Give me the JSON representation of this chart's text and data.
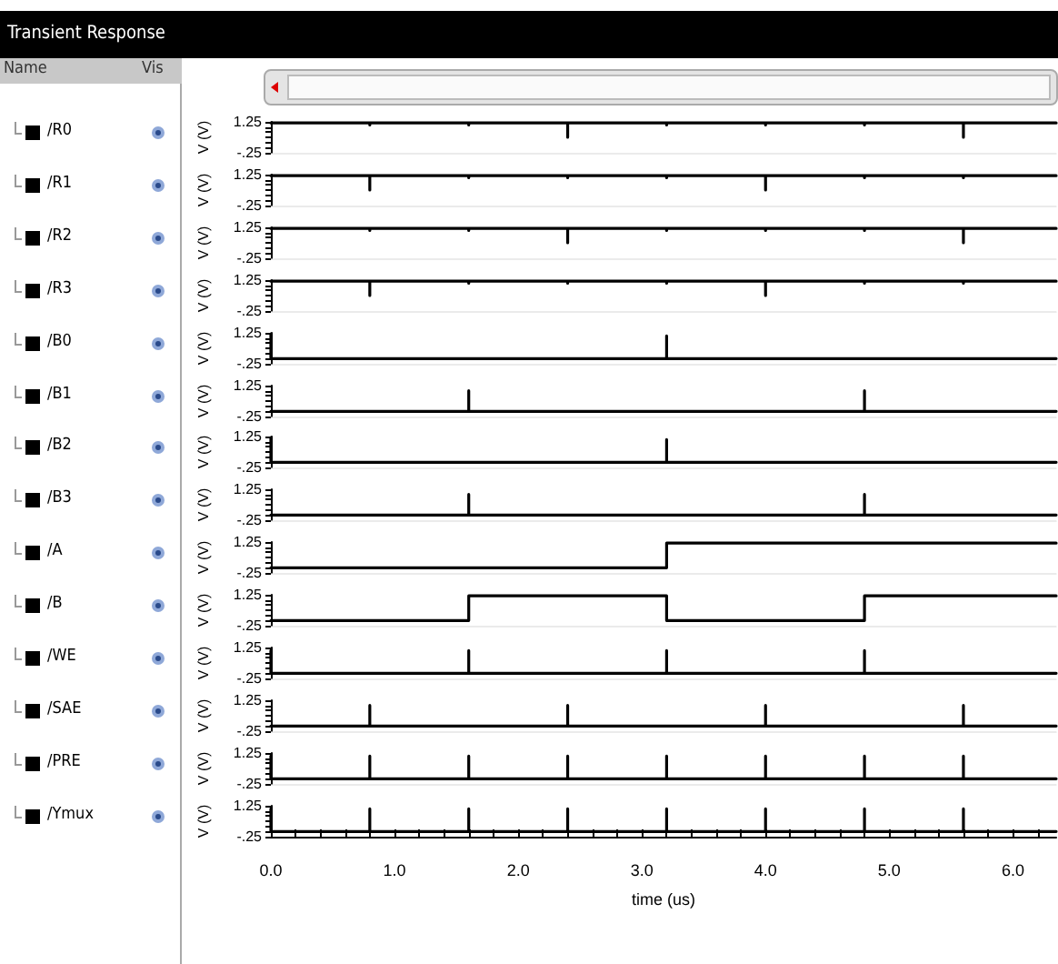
{
  "chart_data": [
    {
      "type": "line",
      "title": "Transient Response",
      "annotations": [
        "Name",
        "Vis"
      ],
      "ylabel": "V (V)",
      "legend": "left",
      "tick_labels": "y",
      "ylim": [
        -0.25,
        1.25
      ],
      "yticks": [
        {
          "value": -0.25,
          "label": "-.25"
        },
        {
          "value": 0,
          "label": null
        },
        {
          "value": 0.25,
          "label": null
        },
        {
          "value": 0.5,
          "label": null
        },
        {
          "value": 0.75,
          "label": null
        },
        {
          "value": 1,
          "label": null
        },
        {
          "value": 1.25,
          "label": "1.25"
        }
      ],
      "xlim": [
        0,
        6.35
      ],
      "series": [
        {
          "name": "/R0",
          "color": "#000000",
          "x": [
            0,
            0.8,
            0.8,
            0.8,
            1.6,
            1.6,
            1.6,
            2.4,
            2.4,
            2.4,
            3.2,
            3.2,
            3.2,
            4.0,
            4.0,
            4.0,
            4.8,
            4.8,
            4.8,
            5.6,
            5.6,
            5.6,
            6.35
          ],
          "values": [
            1.2,
            1.2,
            1.1,
            1.2,
            1.2,
            1.1,
            1.2,
            1.2,
            0.5,
            1.2,
            1.2,
            1.1,
            1.2,
            1.2,
            1.1,
            1.2,
            1.2,
            1.1,
            1.2,
            1.2,
            0.5,
            1.2,
            1.2
          ]
        }
      ]
    },
    {
      "type": "line",
      "ylabel": "V (V)",
      "legend": "left",
      "tick_labels": "y",
      "ylim": [
        -0.25,
        1.25
      ],
      "yticks": [
        {
          "value": -0.25,
          "label": "-.25"
        },
        {
          "value": 0,
          "label": null
        },
        {
          "value": 0.25,
          "label": null
        },
        {
          "value": 0.5,
          "label": null
        },
        {
          "value": 0.75,
          "label": null
        },
        {
          "value": 1,
          "label": null
        },
        {
          "value": 1.25,
          "label": "1.25"
        }
      ],
      "xlim": [
        0,
        6.35
      ],
      "series": [
        {
          "name": "/R1",
          "color": "#000000",
          "x": [
            0,
            0.8,
            0.8,
            0.8,
            1.6,
            1.6,
            1.6,
            2.4,
            2.4,
            2.4,
            3.2,
            3.2,
            3.2,
            4.0,
            4.0,
            4.0,
            4.8,
            4.8,
            4.8,
            5.6,
            5.6,
            5.6,
            6.35
          ],
          "values": [
            1.2,
            1.2,
            0.5,
            1.2,
            1.2,
            1.1,
            1.2,
            1.2,
            1.1,
            1.2,
            1.2,
            1.1,
            1.2,
            1.2,
            0.5,
            1.2,
            1.2,
            1.1,
            1.2,
            1.2,
            1.1,
            1.2,
            1.2
          ]
        }
      ]
    },
    {
      "type": "line",
      "ylabel": "V (V)",
      "legend": "left",
      "tick_labels": "y",
      "ylim": [
        -0.25,
        1.25
      ],
      "yticks": [
        {
          "value": -0.25,
          "label": "-.25"
        },
        {
          "value": 0,
          "label": null
        },
        {
          "value": 0.25,
          "label": null
        },
        {
          "value": 0.5,
          "label": null
        },
        {
          "value": 0.75,
          "label": null
        },
        {
          "value": 1,
          "label": null
        },
        {
          "value": 1.25,
          "label": "1.25"
        }
      ],
      "xlim": [
        0,
        6.35
      ],
      "series": [
        {
          "name": "/R2",
          "color": "#000000",
          "x": [
            0,
            0.8,
            0.8,
            0.8,
            1.6,
            1.6,
            1.6,
            2.4,
            2.4,
            2.4,
            3.2,
            3.2,
            3.2,
            4.0,
            4.0,
            4.0,
            4.8,
            4.8,
            4.8,
            5.6,
            5.6,
            5.6,
            6.35
          ],
          "values": [
            1.2,
            1.2,
            1.1,
            1.2,
            1.2,
            1.1,
            1.2,
            1.2,
            0.5,
            1.2,
            1.2,
            1.1,
            1.2,
            1.2,
            1.1,
            1.2,
            1.2,
            1.1,
            1.2,
            1.2,
            0.5,
            1.2,
            1.2
          ]
        }
      ]
    },
    {
      "type": "line",
      "ylabel": "V (V)",
      "legend": "left",
      "tick_labels": "y",
      "ylim": [
        -0.25,
        1.25
      ],
      "yticks": [
        {
          "value": -0.25,
          "label": "-.25"
        },
        {
          "value": 0,
          "label": null
        },
        {
          "value": 0.25,
          "label": null
        },
        {
          "value": 0.5,
          "label": null
        },
        {
          "value": 0.75,
          "label": null
        },
        {
          "value": 1,
          "label": null
        },
        {
          "value": 1.25,
          "label": "1.25"
        }
      ],
      "xlim": [
        0,
        6.35
      ],
      "series": [
        {
          "name": "/R3",
          "color": "#000000",
          "x": [
            0,
            0.8,
            0.8,
            0.8,
            1.6,
            1.6,
            1.6,
            2.4,
            2.4,
            2.4,
            3.2,
            3.2,
            3.2,
            4.0,
            4.0,
            4.0,
            4.8,
            4.8,
            4.8,
            5.6,
            5.6,
            5.6,
            6.35
          ],
          "values": [
            1.2,
            1.2,
            0.5,
            1.2,
            1.2,
            1.1,
            1.2,
            1.2,
            1.1,
            1.2,
            1.2,
            1.1,
            1.2,
            1.2,
            0.5,
            1.2,
            1.2,
            1.1,
            1.2,
            1.2,
            1.1,
            1.2,
            1.2
          ]
        }
      ]
    },
    {
      "type": "line",
      "ylabel": "V (V)",
      "legend": "left",
      "tick_labels": "y",
      "ylim": [
        -0.25,
        1.25
      ],
      "yticks": [
        {
          "value": -0.25,
          "label": "-.25"
        },
        {
          "value": 0,
          "label": null
        },
        {
          "value": 0.25,
          "label": null
        },
        {
          "value": 0.5,
          "label": null
        },
        {
          "value": 0.75,
          "label": null
        },
        {
          "value": 1,
          "label": null
        },
        {
          "value": 1.25,
          "label": "1.25"
        }
      ],
      "xlim": [
        0,
        6.35
      ],
      "series": [
        {
          "name": "/B0",
          "color": "#000000",
          "x": [
            0,
            0,
            3.2,
            3.2,
            3.2,
            6.35
          ],
          "values": [
            1.2,
            0,
            0,
            1.1,
            0,
            0
          ]
        }
      ]
    },
    {
      "type": "line",
      "ylabel": "V (V)",
      "legend": "left",
      "tick_labels": "y",
      "ylim": [
        -0.25,
        1.25
      ],
      "yticks": [
        {
          "value": -0.25,
          "label": "-.25"
        },
        {
          "value": 0,
          "label": null
        },
        {
          "value": 0.25,
          "label": null
        },
        {
          "value": 0.5,
          "label": null
        },
        {
          "value": 0.75,
          "label": null
        },
        {
          "value": 1,
          "label": null
        },
        {
          "value": 1.25,
          "label": "1.25"
        }
      ],
      "xlim": [
        0,
        6.35
      ],
      "series": [
        {
          "name": "/B1",
          "color": "#000000",
          "x": [
            0,
            1.6,
            1.6,
            1.6,
            4.8,
            4.8,
            4.8,
            6.35
          ],
          "values": [
            0,
            0,
            1.0,
            0,
            0,
            1.0,
            0,
            0
          ]
        }
      ]
    },
    {
      "type": "line",
      "ylabel": "V (V)",
      "legend": "left",
      "tick_labels": "y",
      "ylim": [
        -0.25,
        1.25
      ],
      "yticks": [
        {
          "value": -0.25,
          "label": "-.25"
        },
        {
          "value": 0,
          "label": null
        },
        {
          "value": 0.25,
          "label": null
        },
        {
          "value": 0.5,
          "label": null
        },
        {
          "value": 0.75,
          "label": null
        },
        {
          "value": 1,
          "label": null
        },
        {
          "value": 1.25,
          "label": "1.25"
        }
      ],
      "xlim": [
        0,
        6.35
      ],
      "series": [
        {
          "name": "/B2",
          "color": "#000000",
          "x": [
            0,
            0,
            3.2,
            3.2,
            3.2,
            6.35
          ],
          "values": [
            1.2,
            0,
            0,
            1.1,
            0,
            0
          ]
        }
      ]
    },
    {
      "type": "line",
      "ylabel": "V (V)",
      "legend": "left",
      "tick_labels": "y",
      "ylim": [
        -0.25,
        1.25
      ],
      "yticks": [
        {
          "value": -0.25,
          "label": "-.25"
        },
        {
          "value": 0,
          "label": null
        },
        {
          "value": 0.25,
          "label": null
        },
        {
          "value": 0.5,
          "label": null
        },
        {
          "value": 0.75,
          "label": null
        },
        {
          "value": 1,
          "label": null
        },
        {
          "value": 1.25,
          "label": "1.25"
        }
      ],
      "xlim": [
        0,
        6.35
      ],
      "series": [
        {
          "name": "/B3",
          "color": "#000000",
          "x": [
            0,
            1.6,
            1.6,
            1.6,
            4.8,
            4.8,
            4.8,
            6.35
          ],
          "values": [
            0,
            0,
            1.0,
            0,
            0,
            1.0,
            0,
            0
          ]
        }
      ]
    },
    {
      "type": "step",
      "ylabel": "V (V)",
      "legend": "left",
      "tick_labels": "y",
      "ylim": [
        -0.25,
        1.25
      ],
      "yticks": [
        {
          "value": -0.25,
          "label": "-.25"
        },
        {
          "value": 0,
          "label": null
        },
        {
          "value": 0.25,
          "label": null
        },
        {
          "value": 0.5,
          "label": null
        },
        {
          "value": 0.75,
          "label": null
        },
        {
          "value": 1,
          "label": null
        },
        {
          "value": 1.25,
          "label": "1.25"
        }
      ],
      "xlim": [
        0,
        6.35
      ],
      "series": [
        {
          "name": "/A",
          "color": "#000000",
          "x": [
            0,
            3.2,
            6.35
          ],
          "values": [
            0,
            1.2,
            1.2
          ]
        }
      ]
    },
    {
      "type": "step",
      "ylabel": "V (V)",
      "legend": "left",
      "tick_labels": "y",
      "ylim": [
        -0.25,
        1.25
      ],
      "yticks": [
        {
          "value": -0.25,
          "label": "-.25"
        },
        {
          "value": 0,
          "label": null
        },
        {
          "value": 0.25,
          "label": null
        },
        {
          "value": 0.5,
          "label": null
        },
        {
          "value": 0.75,
          "label": null
        },
        {
          "value": 1,
          "label": null
        },
        {
          "value": 1.25,
          "label": "1.25"
        }
      ],
      "xlim": [
        0,
        6.35
      ],
      "series": [
        {
          "name": "/B",
          "color": "#000000",
          "x": [
            0,
            1.6,
            3.2,
            4.8,
            6.35
          ],
          "values": [
            0,
            1.2,
            0,
            1.2,
            1.2
          ]
        }
      ]
    },
    {
      "type": "line",
      "ylabel": "V (V)",
      "legend": "left",
      "tick_labels": "y",
      "ylim": [
        -0.25,
        1.25
      ],
      "yticks": [
        {
          "value": -0.25,
          "label": "-.25"
        },
        {
          "value": 0,
          "label": null
        },
        {
          "value": 0.25,
          "label": null
        },
        {
          "value": 0.5,
          "label": null
        },
        {
          "value": 0.75,
          "label": null
        },
        {
          "value": 1,
          "label": null
        },
        {
          "value": 1.25,
          "label": "1.25"
        }
      ],
      "xlim": [
        0,
        6.35
      ],
      "series": [
        {
          "name": "/WE",
          "color": "#000000",
          "x": [
            0,
            0,
            1.6,
            1.6,
            1.6,
            3.2,
            3.2,
            3.2,
            4.8,
            4.8,
            4.8,
            6.35
          ],
          "values": [
            1.1,
            0,
            0,
            1.1,
            0,
            0,
            1.1,
            0,
            0,
            1.1,
            0,
            0
          ]
        }
      ]
    },
    {
      "type": "line",
      "ylabel": "V (V)",
      "legend": "left",
      "tick_labels": "y",
      "ylim": [
        -0.25,
        1.25
      ],
      "yticks": [
        {
          "value": -0.25,
          "label": "-.25"
        },
        {
          "value": 0,
          "label": null
        },
        {
          "value": 0.25,
          "label": null
        },
        {
          "value": 0.5,
          "label": null
        },
        {
          "value": 0.75,
          "label": null
        },
        {
          "value": 1,
          "label": null
        },
        {
          "value": 1.25,
          "label": "1.25"
        }
      ],
      "xlim": [
        0,
        6.35
      ],
      "series": [
        {
          "name": "/SAE",
          "color": "#000000",
          "x": [
            0,
            0.8,
            0.8,
            0.8,
            2.4,
            2.4,
            2.4,
            4.0,
            4.0,
            4.0,
            5.6,
            5.6,
            5.6,
            6.35
          ],
          "values": [
            0,
            0,
            1.0,
            0,
            0,
            1.0,
            0,
            0,
            1.0,
            0,
            0,
            1.0,
            0,
            0
          ]
        }
      ]
    },
    {
      "type": "line",
      "ylabel": "V (V)",
      "legend": "left",
      "tick_labels": "y",
      "ylim": [
        -0.25,
        1.25
      ],
      "yticks": [
        {
          "value": -0.25,
          "label": "-.25"
        },
        {
          "value": 0,
          "label": null
        },
        {
          "value": 0.25,
          "label": null
        },
        {
          "value": 0.5,
          "label": null
        },
        {
          "value": 0.75,
          "label": null
        },
        {
          "value": 1,
          "label": null
        },
        {
          "value": 1.25,
          "label": "1.25"
        }
      ],
      "xlim": [
        0,
        6.35
      ],
      "series": [
        {
          "name": "/PRE",
          "color": "#000000",
          "x": [
            0,
            0,
            0.8,
            0.8,
            0.8,
            1.6,
            1.6,
            1.6,
            2.4,
            2.4,
            2.4,
            3.2,
            3.2,
            3.2,
            4.0,
            4.0,
            4.0,
            4.8,
            4.8,
            4.8,
            5.6,
            5.6,
            5.6,
            6.35
          ],
          "values": [
            1.1,
            0,
            0,
            1.1,
            0,
            0,
            1.1,
            0,
            0,
            1.1,
            0,
            0,
            1.1,
            0,
            0,
            1.1,
            0,
            0,
            1.1,
            0,
            0,
            1.1,
            0,
            0
          ]
        }
      ]
    },
    {
      "type": "line",
      "ylabel": "V (V)",
      "xlabel": "time (us)",
      "legend": "left",
      "xlim": [
        0,
        6.35
      ],
      "ylim": [
        -0.25,
        1.25
      ],
      "yticks": [
        {
          "value": -0.25,
          "label": "-.25"
        },
        {
          "value": 0,
          "label": null
        },
        {
          "value": 0.25,
          "label": null
        },
        {
          "value": 0.5,
          "label": null
        },
        {
          "value": 0.75,
          "label": null
        },
        {
          "value": 1,
          "label": null
        },
        {
          "value": 1.25,
          "label": "1.25"
        }
      ],
      "xticks": [
        {
          "value": 0,
          "label": "0.0"
        },
        {
          "value": 0.2,
          "label": null
        },
        {
          "value": 0.4,
          "label": null
        },
        {
          "value": 0.6,
          "label": null
        },
        {
          "value": 0.8,
          "label": null
        },
        {
          "value": 1,
          "label": "1.0"
        },
        {
          "value": 1.2,
          "label": null
        },
        {
          "value": 1.4,
          "label": null
        },
        {
          "value": 1.6,
          "label": null
        },
        {
          "value": 1.8,
          "label": null
        },
        {
          "value": 2,
          "label": "2.0"
        },
        {
          "value": 2.2,
          "label": null
        },
        {
          "value": 2.4,
          "label": null
        },
        {
          "value": 2.6,
          "label": null
        },
        {
          "value": 2.8,
          "label": null
        },
        {
          "value": 3,
          "label": "3.0"
        },
        {
          "value": 3.2,
          "label": null
        },
        {
          "value": 3.4,
          "label": null
        },
        {
          "value": 3.6,
          "label": null
        },
        {
          "value": 3.8,
          "label": null
        },
        {
          "value": 4,
          "label": "4.0"
        },
        {
          "value": 4.2,
          "label": null
        },
        {
          "value": 4.4,
          "label": null
        },
        {
          "value": 4.6,
          "label": null
        },
        {
          "value": 4.8,
          "label": null
        },
        {
          "value": 5,
          "label": "5.0"
        },
        {
          "value": 5.2,
          "label": null
        },
        {
          "value": 5.4,
          "label": null
        },
        {
          "value": 5.6,
          "label": null
        },
        {
          "value": 5.8,
          "label": null
        },
        {
          "value": 6,
          "label": "6.0"
        },
        {
          "value": 6.2,
          "label": null
        }
      ],
      "series": [
        {
          "name": "/Ymux",
          "color": "#000000",
          "x": [
            0,
            0,
            0.8,
            0.8,
            0.8,
            1.6,
            1.6,
            1.6,
            2.4,
            2.4,
            2.4,
            3.2,
            3.2,
            3.2,
            4.0,
            4.0,
            4.0,
            4.8,
            4.8,
            4.8,
            5.6,
            5.6,
            5.6,
            6.35
          ],
          "values": [
            1.1,
            0,
            0,
            1.1,
            0,
            0,
            1.1,
            0,
            0,
            1.1,
            0,
            0,
            1.1,
            0,
            0,
            1.1,
            0,
            0,
            1.1,
            0,
            0,
            1.1,
            0,
            0
          ]
        }
      ]
    }
  ]
}
